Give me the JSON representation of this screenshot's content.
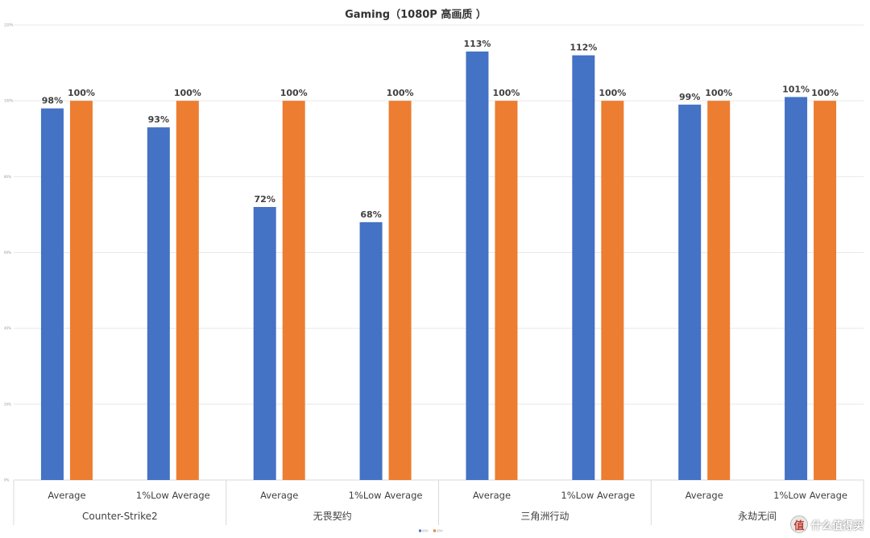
{
  "chart_data": {
    "type": "bar",
    "title": "Gaming（1080P 高画质 ）",
    "y_ticks": [
      "0%",
      "20%",
      "40%",
      "60%",
      "80%",
      "100%",
      "120%"
    ],
    "ylim": [
      0,
      120
    ],
    "grid": true,
    "legend_placement": "bottom-center",
    "groups": [
      {
        "name": "Counter-Strike2",
        "categories": [
          "Average",
          "1%Low Average"
        ]
      },
      {
        "name": "无畏契约",
        "categories": [
          "Average",
          "1%Low Average"
        ]
      },
      {
        "name": "三角洲行动",
        "categories": [
          "Average",
          "1%Low Average"
        ]
      },
      {
        "name": "永劫无间",
        "categories": [
          "Average",
          "1%Low Average"
        ]
      }
    ],
    "series": [
      {
        "color": "#4472c4",
        "values": [
          98,
          93,
          72,
          68,
          113,
          112,
          99,
          101
        ],
        "labels": [
          "98%",
          "93%",
          "72%",
          "68%",
          "113%",
          "112%",
          "99%",
          "101%"
        ]
      },
      {
        "color": "#ed7d31",
        "values": [
          100,
          100,
          100,
          100,
          100,
          100,
          100,
          100
        ],
        "labels": [
          "100%",
          "100%",
          "100%",
          "100%",
          "100%",
          "100%",
          "100%",
          "100%"
        ]
      }
    ],
    "legend": [
      "系列1",
      "系列2"
    ]
  },
  "watermark": {
    "logo": "值",
    "text": "什么值得买"
  }
}
